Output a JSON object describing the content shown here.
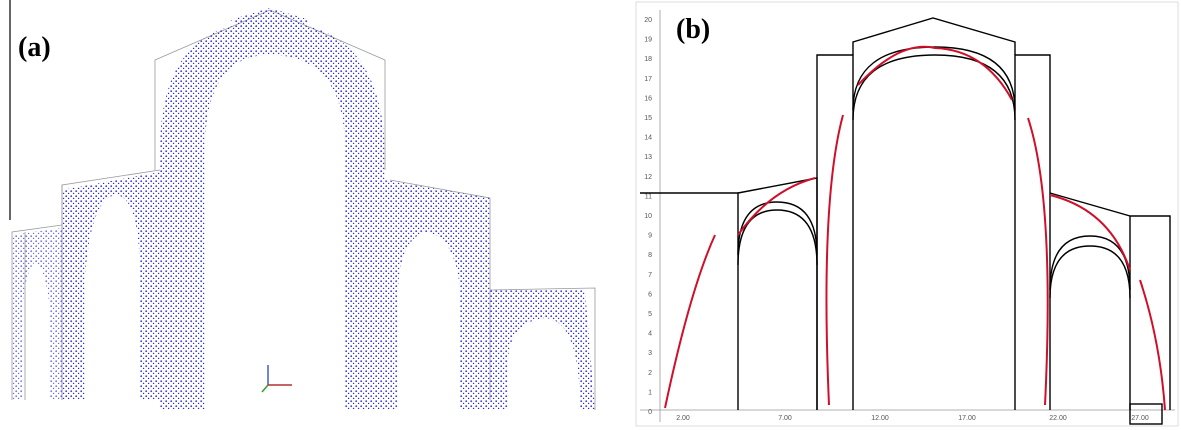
{
  "panels": [
    {
      "label": "(a)"
    },
    {
      "label": "(b)",
      "x_labels": [
        "2.00",
        "7.00",
        "12.00",
        "17.00",
        "22.00",
        "27.00"
      ],
      "y_labels": [
        "0",
        "1",
        "2",
        "3",
        "4",
        "5",
        "6",
        "7",
        "8",
        "9",
        "10",
        "11",
        "12",
        "13",
        "14",
        "15",
        "16",
        "17",
        "18",
        "19",
        "20"
      ]
    }
  ]
}
